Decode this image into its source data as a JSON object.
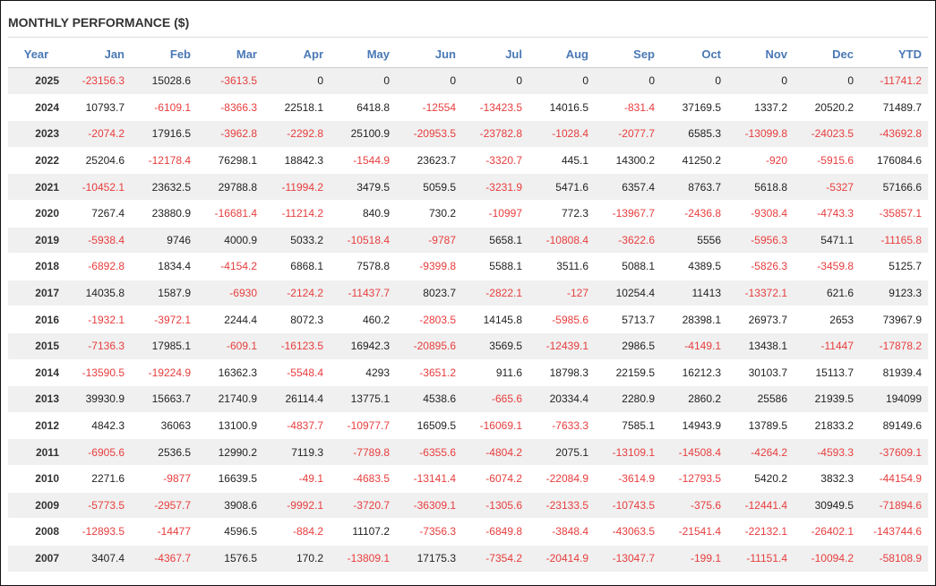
{
  "title": "MONTHLY PERFORMANCE ($)",
  "columns": [
    "Year",
    "Jan",
    "Feb",
    "Mar",
    "Apr",
    "May",
    "Jun",
    "Jul",
    "Aug",
    "Sep",
    "Oct",
    "Nov",
    "Dec",
    "YTD"
  ],
  "colors": {
    "header": "#4a78b5",
    "negative": "#e83d3d",
    "positive": "#222222",
    "stripe": "#f0f0f0"
  },
  "rows": [
    [
      "2025",
      "-23156.3",
      "15028.6",
      "-3613.5",
      "0",
      "0",
      "0",
      "0",
      "0",
      "0",
      "0",
      "0",
      "0",
      "-11741.2"
    ],
    [
      "2024",
      "10793.7",
      "-6109.1",
      "-8366.3",
      "22518.1",
      "6418.8",
      "-12554",
      "-13423.5",
      "14016.5",
      "-831.4",
      "37169.5",
      "1337.2",
      "20520.2",
      "71489.7"
    ],
    [
      "2023",
      "-2074.2",
      "17916.5",
      "-3962.8",
      "-2292.8",
      "25100.9",
      "-20953.5",
      "-23782.8",
      "-1028.4",
      "-2077.7",
      "6585.3",
      "-13099.8",
      "-24023.5",
      "-43692.8"
    ],
    [
      "2022",
      "25204.6",
      "-12178.4",
      "76298.1",
      "18842.3",
      "-1544.9",
      "23623.7",
      "-3320.7",
      "445.1",
      "14300.2",
      "41250.2",
      "-920",
      "-5915.6",
      "176084.6"
    ],
    [
      "2021",
      "-10452.1",
      "23632.5",
      "29788.8",
      "-11994.2",
      "3479.5",
      "5059.5",
      "-3231.9",
      "5471.6",
      "6357.4",
      "8763.7",
      "5618.8",
      "-5327",
      "57166.6"
    ],
    [
      "2020",
      "7267.4",
      "23880.9",
      "-16681.4",
      "-11214.2",
      "840.9",
      "730.2",
      "-10997",
      "772.3",
      "-13967.7",
      "-2436.8",
      "-9308.4",
      "-4743.3",
      "-35857.1"
    ],
    [
      "2019",
      "-5938.4",
      "9746",
      "4000.9",
      "5033.2",
      "-10518.4",
      "-9787",
      "5658.1",
      "-10808.4",
      "-3622.6",
      "5556",
      "-5956.3",
      "5471.1",
      "-11165.8"
    ],
    [
      "2018",
      "-6892.8",
      "1834.4",
      "-4154.2",
      "6868.1",
      "7578.8",
      "-9399.8",
      "5588.1",
      "3511.6",
      "5088.1",
      "4389.5",
      "-5826.3",
      "-3459.8",
      "5125.7"
    ],
    [
      "2017",
      "14035.8",
      "1587.9",
      "-6930",
      "-2124.2",
      "-11437.7",
      "8023.7",
      "-2822.1",
      "-127",
      "10254.4",
      "11413",
      "-13372.1",
      "621.6",
      "9123.3"
    ],
    [
      "2016",
      "-1932.1",
      "-3972.1",
      "2244.4",
      "8072.3",
      "460.2",
      "-2803.5",
      "14145.8",
      "-5985.6",
      "5713.7",
      "28398.1",
      "26973.7",
      "2653",
      "73967.9"
    ],
    [
      "2015",
      "-7136.3",
      "17985.1",
      "-609.1",
      "-16123.5",
      "16942.3",
      "-20895.6",
      "3569.5",
      "-12439.1",
      "2986.5",
      "-4149.1",
      "13438.1",
      "-11447",
      "-17878.2"
    ],
    [
      "2014",
      "-13590.5",
      "-19224.9",
      "16362.3",
      "-5548.4",
      "4293",
      "-3651.2",
      "911.6",
      "18798.3",
      "22159.5",
      "16212.3",
      "30103.7",
      "15113.7",
      "81939.4"
    ],
    [
      "2013",
      "39930.9",
      "15663.7",
      "21740.9",
      "26114.4",
      "13775.1",
      "4538.6",
      "-665.6",
      "20334.4",
      "2280.9",
      "2860.2",
      "25586",
      "21939.5",
      "194099"
    ],
    [
      "2012",
      "4842.3",
      "36063",
      "13100.9",
      "-4837.7",
      "-10977.7",
      "16509.5",
      "-16069.1",
      "-7633.3",
      "7585.1",
      "14943.9",
      "13789.5",
      "21833.2",
      "89149.6"
    ],
    [
      "2011",
      "-6905.6",
      "2536.5",
      "12990.2",
      "7119.3",
      "-7789.8",
      "-6355.6",
      "-4804.2",
      "2075.1",
      "-13109.1",
      "-14508.4",
      "-4264.2",
      "-4593.3",
      "-37609.1"
    ],
    [
      "2010",
      "2271.6",
      "-9877",
      "16639.5",
      "-49.1",
      "-4683.5",
      "-13141.4",
      "-6074.2",
      "-22084.9",
      "-3614.9",
      "-12793.5",
      "5420.2",
      "3832.3",
      "-44154.9"
    ],
    [
      "2009",
      "-5773.5",
      "-2957.7",
      "3908.6",
      "-9992.1",
      "-3720.7",
      "-36309.1",
      "-1305.6",
      "-23133.5",
      "-10743.5",
      "-375.6",
      "-12441.4",
      "30949.5",
      "-71894.6"
    ],
    [
      "2008",
      "-12893.5",
      "-14477",
      "4596.5",
      "-884.2",
      "11107.2",
      "-7356.3",
      "-6849.8",
      "-3848.4",
      "-43063.5",
      "-21541.4",
      "-22132.1",
      "-26402.1",
      "-143744.6"
    ],
    [
      "2007",
      "3407.4",
      "-4367.7",
      "1576.5",
      "170.2",
      "-13809.1",
      "17175.3",
      "-7354.2",
      "-20414.9",
      "-13047.7",
      "-199.1",
      "-11151.4",
      "-10094.2",
      "-58108.9"
    ]
  ]
}
